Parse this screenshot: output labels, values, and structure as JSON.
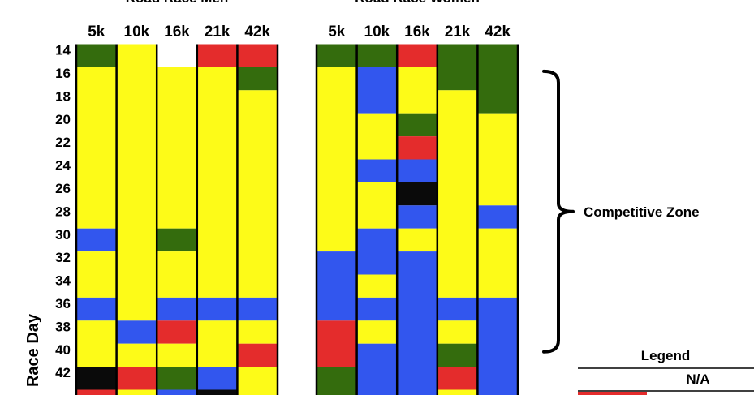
{
  "chart_data": {
    "type": "heatmap",
    "ylabel": "Race Day",
    "y_ticks": [
      14,
      16,
      18,
      20,
      22,
      24,
      26,
      28,
      30,
      32,
      34,
      36,
      38,
      40,
      42
    ],
    "y_start": 14,
    "y_step": 1,
    "colors": {
      "G": "#346c0d",
      "Y": "#fdfb18",
      "B": "#3256ee",
      "R": "#e42c2c",
      "K": "#0a0a0a",
      "W": "#ffffff"
    },
    "panels": [
      {
        "title": "--- Road Race Men ---",
        "columns": [
          {
            "name": "5k",
            "cells": [
              "G",
              "G",
              "Y",
              "Y",
              "Y",
              "Y",
              "Y",
              "Y",
              "Y",
              "Y",
              "Y",
              "Y",
              "Y",
              "Y",
              "Y",
              "Y",
              "B",
              "B",
              "Y",
              "Y",
              "Y",
              "Y",
              "B",
              "B",
              "Y",
              "Y",
              "Y",
              "Y",
              "K",
              "K",
              "R"
            ]
          },
          {
            "name": "10k",
            "cells": [
              "Y",
              "Y",
              "Y",
              "Y",
              "Y",
              "Y",
              "Y",
              "Y",
              "Y",
              "Y",
              "Y",
              "Y",
              "Y",
              "Y",
              "Y",
              "Y",
              "Y",
              "Y",
              "Y",
              "Y",
              "Y",
              "Y",
              "Y",
              "Y",
              "B",
              "B",
              "Y",
              "Y",
              "R",
              "R",
              "Y"
            ]
          },
          {
            "name": "16k",
            "cells": [
              "W",
              "W",
              "Y",
              "Y",
              "Y",
              "Y",
              "Y",
              "Y",
              "Y",
              "Y",
              "Y",
              "Y",
              "Y",
              "Y",
              "Y",
              "Y",
              "G",
              "G",
              "Y",
              "Y",
              "Y",
              "Y",
              "B",
              "B",
              "R",
              "R",
              "Y",
              "Y",
              "G",
              "G",
              "B"
            ]
          },
          {
            "name": "21k",
            "cells": [
              "R",
              "R",
              "Y",
              "Y",
              "Y",
              "Y",
              "Y",
              "Y",
              "Y",
              "Y",
              "Y",
              "Y",
              "Y",
              "Y",
              "Y",
              "Y",
              "Y",
              "Y",
              "Y",
              "Y",
              "Y",
              "Y",
              "B",
              "B",
              "Y",
              "Y",
              "Y",
              "Y",
              "B",
              "B",
              "K"
            ]
          },
          {
            "name": "42k",
            "cells": [
              "R",
              "R",
              "G",
              "G",
              "Y",
              "Y",
              "Y",
              "Y",
              "Y",
              "Y",
              "Y",
              "Y",
              "Y",
              "Y",
              "Y",
              "Y",
              "Y",
              "Y",
              "Y",
              "Y",
              "Y",
              "Y",
              "B",
              "B",
              "Y",
              "Y",
              "R",
              "R",
              "Y",
              "Y",
              "Y"
            ]
          }
        ]
      },
      {
        "title": "--- Road Race Women ---",
        "columns": [
          {
            "name": "5k",
            "cells": [
              "G",
              "G",
              "Y",
              "Y",
              "Y",
              "Y",
              "Y",
              "Y",
              "Y",
              "Y",
              "Y",
              "Y",
              "Y",
              "Y",
              "Y",
              "Y",
              "Y",
              "Y",
              "B",
              "B",
              "B",
              "B",
              "B",
              "B",
              "R",
              "R",
              "R",
              "R",
              "G",
              "G",
              "G"
            ]
          },
          {
            "name": "10k",
            "cells": [
              "G",
              "G",
              "B",
              "B",
              "B",
              "B",
              "Y",
              "Y",
              "Y",
              "Y",
              "B",
              "B",
              "Y",
              "Y",
              "Y",
              "Y",
              "B",
              "B",
              "B",
              "B",
              "Y",
              "Y",
              "B",
              "B",
              "Y",
              "Y",
              "B",
              "B",
              "B",
              "B",
              "B"
            ]
          },
          {
            "name": "16k",
            "cells": [
              "R",
              "R",
              "Y",
              "Y",
              "Y",
              "Y",
              "G",
              "G",
              "R",
              "R",
              "B",
              "B",
              "K",
              "K",
              "B",
              "B",
              "Y",
              "Y",
              "B",
              "B",
              "B",
              "B",
              "B",
              "B",
              "B",
              "B",
              "B",
              "B",
              "B",
              "B",
              "B"
            ]
          },
          {
            "name": "21k",
            "cells": [
              "G",
              "G",
              "G",
              "G",
              "Y",
              "Y",
              "Y",
              "Y",
              "Y",
              "Y",
              "Y",
              "Y",
              "Y",
              "Y",
              "Y",
              "Y",
              "Y",
              "Y",
              "Y",
              "Y",
              "Y",
              "Y",
              "B",
              "B",
              "Y",
              "Y",
              "G",
              "G",
              "R",
              "R",
              "Y"
            ]
          },
          {
            "name": "42k",
            "cells": [
              "G",
              "G",
              "G",
              "G",
              "G",
              "G",
              "Y",
              "Y",
              "Y",
              "Y",
              "Y",
              "Y",
              "Y",
              "Y",
              "B",
              "B",
              "Y",
              "Y",
              "Y",
              "Y",
              "Y",
              "Y",
              "B",
              "B",
              "B",
              "B",
              "B",
              "B",
              "B",
              "B",
              "B"
            ]
          }
        ]
      }
    ],
    "annotations": [
      {
        "text": "Competitive Zone",
        "y_range": [
          16,
          40
        ],
        "kind": "bracket"
      }
    ],
    "legend": {
      "title": "Legend",
      "items": [
        {
          "label": "N/A",
          "color": "R"
        }
      ]
    }
  }
}
